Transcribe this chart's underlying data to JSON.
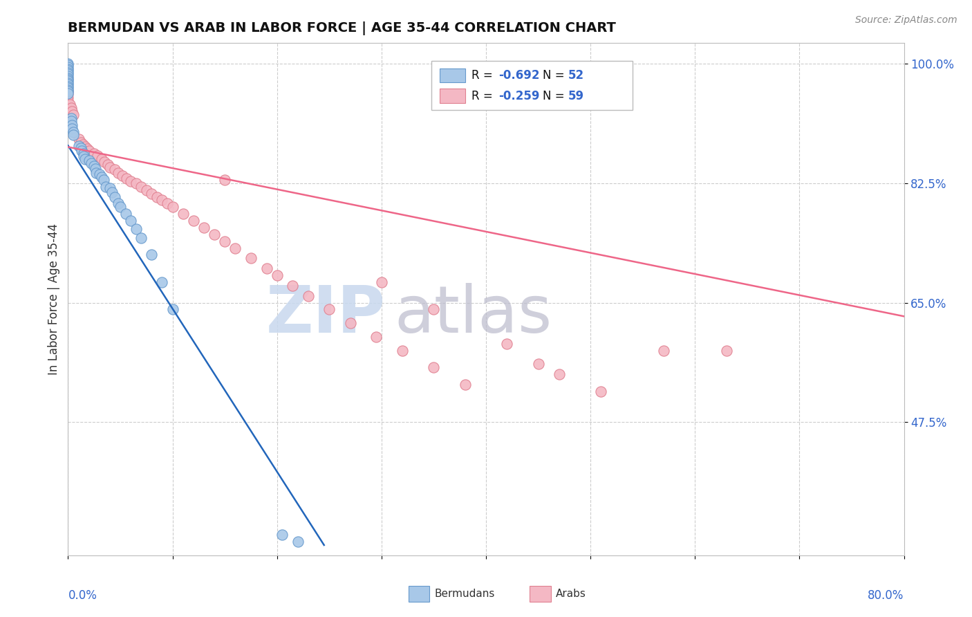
{
  "title": "BERMUDAN VS ARAB IN LABOR FORCE | AGE 35-44 CORRELATION CHART",
  "source_text": "Source: ZipAtlas.com",
  "ylabel": "In Labor Force | Age 35-44",
  "xlim": [
    0.0,
    0.8
  ],
  "ylim": [
    0.28,
    1.03
  ],
  "ytick_vals": [
    0.475,
    0.65,
    0.825,
    1.0
  ],
  "ytick_labels": [
    "47.5%",
    "65.0%",
    "82.5%",
    "100.0%"
  ],
  "bermudan_color": "#A8C8E8",
  "bermudan_edge": "#6699CC",
  "arab_color": "#F4B8C4",
  "arab_edge": "#E08090",
  "line_bermudan_color": "#2266BB",
  "line_arab_color": "#EE6688",
  "watermark_zip_color": "#C8D8EE",
  "watermark_atlas_color": "#BBBBCC",
  "bermudan_x": [
    0.0,
    0.0,
    0.0,
    0.0,
    0.0,
    0.0,
    0.0,
    0.0,
    0.0,
    0.0,
    0.0,
    0.0,
    0.0,
    0.0,
    0.0,
    0.0,
    0.0,
    0.0,
    0.003,
    0.003,
    0.004,
    0.004,
    0.005,
    0.005,
    0.01,
    0.012,
    0.013,
    0.015,
    0.015,
    0.016,
    0.02,
    0.022,
    0.025,
    0.026,
    0.027,
    0.03,
    0.032,
    0.034,
    0.036,
    0.04,
    0.042,
    0.045,
    0.048,
    0.05,
    0.055,
    0.06,
    0.065,
    0.07,
    0.08,
    0.09,
    0.1,
    0.205,
    0.22
  ],
  "bermudan_y": [
    1.0,
    0.998,
    0.995,
    0.992,
    0.99,
    0.987,
    0.985,
    0.982,
    0.979,
    0.977,
    0.975,
    0.972,
    0.97,
    0.967,
    0.965,
    0.962,
    0.96,
    0.957,
    0.92,
    0.916,
    0.91,
    0.905,
    0.9,
    0.896,
    0.88,
    0.876,
    0.872,
    0.868,
    0.864,
    0.86,
    0.858,
    0.854,
    0.85,
    0.846,
    0.84,
    0.838,
    0.834,
    0.83,
    0.82,
    0.818,
    0.812,
    0.805,
    0.795,
    0.79,
    0.78,
    0.77,
    0.758,
    0.745,
    0.72,
    0.68,
    0.64,
    0.31,
    0.3
  ],
  "arab_x": [
    0.0,
    0.0,
    0.0,
    0.0,
    0.002,
    0.003,
    0.004,
    0.005,
    0.01,
    0.012,
    0.014,
    0.016,
    0.018,
    0.02,
    0.025,
    0.028,
    0.032,
    0.035,
    0.038,
    0.04,
    0.045,
    0.048,
    0.052,
    0.056,
    0.06,
    0.065,
    0.07,
    0.075,
    0.08,
    0.085,
    0.09,
    0.095,
    0.1,
    0.11,
    0.12,
    0.13,
    0.14,
    0.15,
    0.16,
    0.175,
    0.19,
    0.2,
    0.215,
    0.23,
    0.25,
    0.27,
    0.295,
    0.32,
    0.35,
    0.38,
    0.15,
    0.3,
    0.35,
    0.42,
    0.45,
    0.47,
    0.51,
    0.57,
    0.63
  ],
  "arab_y": [
    0.96,
    0.955,
    0.95,
    0.945,
    0.94,
    0.935,
    0.93,
    0.925,
    0.89,
    0.885,
    0.882,
    0.878,
    0.875,
    0.872,
    0.868,
    0.865,
    0.86,
    0.856,
    0.852,
    0.848,
    0.845,
    0.84,
    0.836,
    0.832,
    0.828,
    0.825,
    0.82,
    0.815,
    0.81,
    0.805,
    0.8,
    0.795,
    0.79,
    0.78,
    0.77,
    0.76,
    0.75,
    0.74,
    0.73,
    0.715,
    0.7,
    0.69,
    0.675,
    0.66,
    0.64,
    0.62,
    0.6,
    0.58,
    0.555,
    0.53,
    0.83,
    0.68,
    0.64,
    0.59,
    0.56,
    0.545,
    0.52,
    0.58,
    0.58
  ],
  "berm_line_x": [
    0.0,
    0.245
  ],
  "berm_line_y": [
    0.88,
    0.295
  ],
  "arab_line_x": [
    0.0,
    0.8
  ],
  "arab_line_y": [
    0.878,
    0.63
  ]
}
